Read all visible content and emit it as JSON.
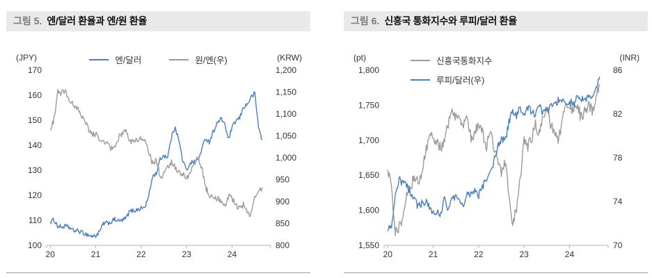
{
  "figures": [
    {
      "label": "그림 5.",
      "title": "엔/달러 환율과 엔/원 환율"
    },
    {
      "label": "그림 6.",
      "title": "신흥국 통화지수와 루피/달러 환율"
    }
  ],
  "chart_data": [
    {
      "type": "line",
      "title": "엔/달러 환율과 엔/원 환율",
      "grid": false,
      "legend_position": "top-center-row",
      "x_start": 2020.0,
      "x_step": 0.0833333,
      "x_range": [
        2019.92,
        2024.85
      ],
      "x_ticks": {
        "values": [
          2020,
          2021,
          2022,
          2023,
          2024
        ],
        "labels": [
          "20",
          "21",
          "22",
          "23",
          "24"
        ]
      },
      "left_axis": {
        "unit": "(JPY)",
        "min": 100,
        "max": 170,
        "tick_values": [
          100,
          110,
          120,
          130,
          140,
          150,
          160,
          170
        ],
        "tick_labels": [
          "100",
          "110",
          "120",
          "130",
          "140",
          "150",
          "160",
          "170"
        ]
      },
      "right_axis": {
        "unit": "(KRW)",
        "min": 800,
        "max": 1200,
        "tick_values": [
          800,
          850,
          900,
          950,
          1000,
          1050,
          1100,
          1150,
          1200
        ],
        "tick_labels": [
          "800",
          "850",
          "900",
          "950",
          "1,000",
          "1,050",
          "1,100",
          "1,150",
          "1,200"
        ]
      },
      "series": [
        {
          "name": "엔/달러",
          "axis": "left",
          "color": "#4a7ebb",
          "noise": 0.9,
          "values": [
            109.3,
            110.2,
            107.6,
            107.3,
            107.6,
            107.2,
            105.9,
            105.9,
            105.4,
            104.7,
            104.2,
            103.6,
            103.8,
            105.3,
            108.6,
            108.9,
            109.2,
            110.4,
            109.7,
            109.9,
            110.9,
            113.6,
            113.9,
            114.2,
            114.8,
            115.2,
            119.6,
            127.6,
            128.7,
            134.3,
            136.0,
            135.2,
            143.2,
            147.6,
            141.5,
            133.9,
            129.8,
            133.2,
            133.3,
            134.1,
            138.3,
            142.9,
            141.3,
            145.3,
            148.6,
            150.5,
            149.0,
            142.1,
            146.9,
            149.8,
            150.8,
            155.3,
            156.3,
            159.1,
            160.8,
            147.1,
            142.2
          ]
        },
        {
          "name": "원/엔(우)",
          "axis": "right",
          "color": "#9b9b9b",
          "noise": 7,
          "values": [
            1062,
            1088,
            1152,
            1148,
            1150,
            1128,
            1121,
            1117,
            1102,
            1088,
            1068,
            1052,
            1056,
            1046,
            1036,
            1032,
            1022,
            1020,
            1046,
            1056,
            1062,
            1036,
            1042,
            1036,
            1046,
            1042,
            1012,
            988,
            992,
            958,
            962,
            976,
            992,
            978,
            966,
            962,
            952,
            968,
            988,
            998,
            978,
            932,
            916,
            912,
            908,
            902,
            888,
            912,
            906,
            892,
            886,
            892,
            876,
            870,
            906,
            922,
            932
          ]
        }
      ]
    },
    {
      "type": "line",
      "title": "신흥국 통화지수와 루피/달러 환율",
      "grid": false,
      "legend_position": "top-left-column",
      "x_start": 2020.0,
      "x_step": 0.0833333,
      "x_range": [
        2019.92,
        2024.85
      ],
      "x_ticks": {
        "values": [
          2020,
          2021,
          2022,
          2023,
          2024
        ],
        "labels": [
          "20",
          "21",
          "22",
          "23",
          "24"
        ]
      },
      "left_axis": {
        "unit": "(pt)",
        "min": 1550,
        "max": 1800,
        "tick_values": [
          1550,
          1600,
          1650,
          1700,
          1750,
          1800
        ],
        "tick_labels": [
          "1,550",
          "1,600",
          "1,650",
          "1,700",
          "1,750",
          "1,800"
        ]
      },
      "right_axis": {
        "unit": "(INR)",
        "min": 70,
        "max": 86,
        "tick_values": [
          70,
          74,
          78,
          82,
          86
        ],
        "tick_labels": [
          "70",
          "74",
          "78",
          "82",
          "86"
        ]
      },
      "series": [
        {
          "name": "신흥국통화지수",
          "axis": "left",
          "color": "#9b9b9b",
          "noise": 8,
          "values": [
            1658,
            1638,
            1568,
            1576,
            1592,
            1622,
            1632,
            1648,
            1642,
            1652,
            1682,
            1702,
            1706,
            1698,
            1688,
            1702,
            1722,
            1748,
            1732,
            1726,
            1718,
            1736,
            1702,
            1712,
            1722,
            1712,
            1692,
            1716,
            1686,
            1672,
            1652,
            1668,
            1622,
            1582,
            1602,
            1642,
            1702,
            1692,
            1702,
            1722,
            1712,
            1732,
            1748,
            1722,
            1712,
            1702,
            1722,
            1752,
            1742,
            1746,
            1752,
            1732,
            1742,
            1748,
            1742,
            1762,
            1778
          ]
        },
        {
          "name": "루피/달러(우)",
          "axis": "right",
          "color": "#4a7ebb",
          "noise": 0.35,
          "values": [
            71.3,
            71.8,
            74.6,
            76.1,
            75.6,
            75.5,
            74.8,
            74.1,
            73.6,
            73.8,
            74.1,
            73.5,
            73.0,
            72.9,
            72.9,
            74.4,
            73.2,
            74.2,
            74.4,
            74.2,
            73.7,
            74.9,
            74.6,
            75.2,
            74.6,
            75.3,
            76.2,
            76.5,
            77.6,
            78.9,
            79.8,
            79.5,
            81.3,
            82.3,
            81.7,
            82.6,
            81.7,
            82.6,
            82.2,
            81.8,
            82.7,
            82.1,
            82.2,
            82.7,
            83.0,
            83.2,
            83.3,
            83.2,
            83.1,
            82.9,
            83.4,
            83.5,
            83.3,
            83.5,
            83.7,
            84.2,
            85.4
          ]
        }
      ]
    }
  ]
}
